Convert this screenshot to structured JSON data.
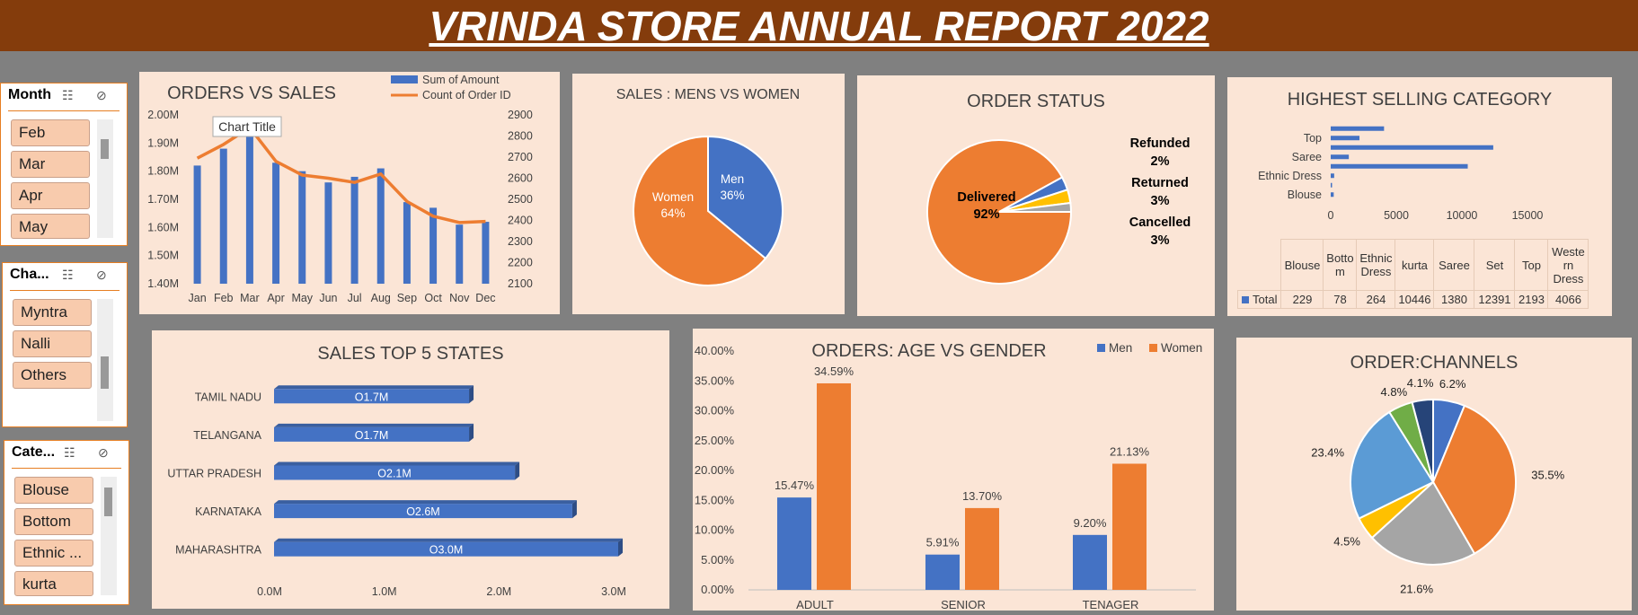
{
  "report_title": "VRINDA STORE ANNUAL REPORT 2022",
  "slicers": {
    "month": {
      "title": "Month",
      "items": [
        "Feb",
        "Mar",
        "Apr",
        "May"
      ]
    },
    "channel": {
      "title": "Cha...",
      "items": [
        "Myntra",
        "Nalli",
        "Others"
      ]
    },
    "category": {
      "title": "Cate...",
      "items": [
        "Blouse",
        "Bottom",
        "Ethnic ...",
        "kurta"
      ]
    }
  },
  "chart_data": [
    {
      "id": "orders_vs_sales",
      "type": "bar",
      "title": "ORDERS VS SALES",
      "tooltip": "Chart Title",
      "categories": [
        "Jan",
        "Feb",
        "Mar",
        "Apr",
        "May",
        "Jun",
        "Jul",
        "Aug",
        "Sep",
        "Oct",
        "Nov",
        "Dec"
      ],
      "series": [
        {
          "name": "Sum of Amount",
          "type": "bar",
          "axis": "left",
          "values": [
            1.82,
            1.88,
            1.93,
            1.83,
            1.8,
            1.76,
            1.78,
            1.81,
            1.69,
            1.67,
            1.61,
            1.62
          ]
        },
        {
          "name": "Count of Order ID",
          "type": "line",
          "axis": "right",
          "values": [
            2695,
            2760,
            2840,
            2680,
            2615,
            2600,
            2580,
            2620,
            2490,
            2420,
            2390,
            2395
          ]
        }
      ],
      "y_left_ticks": [
        "1.40M",
        "1.50M",
        "1.60M",
        "1.70M",
        "1.80M",
        "1.90M",
        "2.00M"
      ],
      "y_right_ticks": [
        "2100",
        "2200",
        "2300",
        "2400",
        "2500",
        "2600",
        "2700",
        "2800",
        "2900"
      ],
      "ylim_left": [
        1.4,
        2.0
      ],
      "ylim_right": [
        2100,
        2900
      ],
      "colors": {
        "bar": "#4472C4",
        "line": "#ED7D31"
      }
    },
    {
      "id": "sales_men_women",
      "type": "pie",
      "title": "SALES : MENS VS WOMEN",
      "labels": [
        "Men",
        "Women"
      ],
      "values": [
        36,
        64
      ],
      "value_labels": [
        "36%",
        "64%"
      ],
      "colors": [
        "#4472C4",
        "#ED7D31"
      ]
    },
    {
      "id": "order_status",
      "type": "pie",
      "title": "ORDER STATUS",
      "labels": [
        "Delivered",
        "Cancelled",
        "Returned",
        "Refunded"
      ],
      "values": [
        92,
        3,
        3,
        2
      ],
      "value_labels": [
        "92%",
        "3%",
        "3%",
        "2%"
      ],
      "colors": [
        "#ED7D31",
        "#4472C4",
        "#FFC000",
        "#A5A5A5"
      ]
    },
    {
      "id": "highest_selling_category",
      "type": "bar",
      "orientation": "horizontal",
      "title": "HIGHEST SELLING CATEGORY",
      "categories": [
        "Blouse",
        "Bottom",
        "Ethnic Dress",
        "kurta",
        "Saree",
        "Set",
        "Top",
        "Western Dress"
      ],
      "visible_axis_labels": [
        "Top",
        "Saree",
        "Ethnic Dress",
        "Blouse"
      ],
      "values": [
        229,
        78,
        264,
        10446,
        1380,
        12391,
        2193,
        4066
      ],
      "x_ticks": [
        "0",
        "5000",
        "10000",
        "15000"
      ],
      "xlim": [
        0,
        15000
      ],
      "table_headers": [
        "Blouse",
        "Botto m",
        "Ethnic Dress",
        "kurta",
        "Saree",
        "Set",
        "Top",
        "Weste rn Dress"
      ],
      "table_row_label": "Total",
      "table_values": [
        "229",
        "78",
        "264",
        "10446",
        "1380",
        "12391",
        "2193",
        "4066"
      ],
      "color": "#4472C4"
    },
    {
      "id": "sales_top_5_states",
      "type": "bar",
      "orientation": "horizontal",
      "title": "SALES TOP 5 STATES",
      "categories": [
        "TAMIL NADU",
        "TELANGANA",
        "UTTAR PRADESH",
        "KARNATAKA",
        "MAHARASHTRA"
      ],
      "values": [
        1.7,
        1.7,
        2.1,
        2.6,
        3.0
      ],
      "value_labels": [
        "O1.7M",
        "O1.7M",
        "O2.1M",
        "O2.6M",
        "O3.0M"
      ],
      "x_ticks": [
        "0.0M",
        "1.0M",
        "2.0M",
        "3.0M"
      ],
      "xlim": [
        0,
        3.0
      ],
      "color": "#4472C4"
    },
    {
      "id": "orders_age_gender",
      "type": "bar",
      "title": "ORDERS: AGE VS GENDER",
      "categories": [
        "ADULT",
        "SENIOR",
        "TENAGER"
      ],
      "series": [
        {
          "name": "Men",
          "values": [
            15.47,
            5.91,
            9.2
          ],
          "labels": [
            "15.47%",
            "5.91%",
            "9.20%"
          ]
        },
        {
          "name": "Women",
          "values": [
            34.59,
            13.7,
            21.13
          ],
          "labels": [
            "34.59%",
            "13.70%",
            "21.13%"
          ]
        }
      ],
      "y_ticks": [
        "0.00%",
        "5.00%",
        "10.00%",
        "15.00%",
        "20.00%",
        "25.00%",
        "30.00%",
        "35.00%",
        "40.00%"
      ],
      "ylim": [
        0,
        40
      ],
      "colors": [
        "#4472C4",
        "#ED7D31"
      ]
    },
    {
      "id": "order_channels",
      "type": "pie",
      "title": "ORDER:CHANNELS",
      "values": [
        6.2,
        35.5,
        21.6,
        4.5,
        23.4,
        4.8,
        4.1
      ],
      "value_labels": [
        "6.2%",
        "35.5%",
        "21.6%",
        "4.5%",
        "23.4%",
        "4.8%",
        "4.1%"
      ],
      "colors": [
        "#4472C4",
        "#ED7D31",
        "#A5A5A5",
        "#FFC000",
        "#5B9BD5",
        "#70AD47",
        "#264478"
      ]
    }
  ]
}
